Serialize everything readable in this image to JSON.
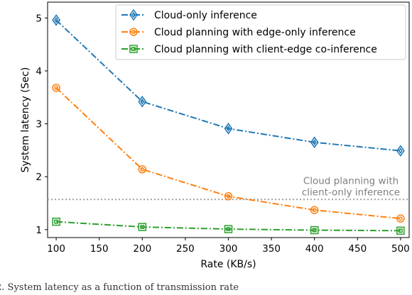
{
  "chart_data": {
    "type": "line",
    "xlabel": "Rate (KB/s)",
    "ylabel": "System latency (Sec)",
    "xlim": [
      90,
      510
    ],
    "ylim": [
      0.85,
      5.3
    ],
    "x_ticks": [
      "100",
      "150",
      "200",
      "250",
      "300",
      "350",
      "400",
      "450",
      "500"
    ],
    "y_ticks": [
      "1",
      "2",
      "3",
      "4",
      "5"
    ],
    "x": [
      100,
      200,
      300,
      400,
      500
    ],
    "series": [
      {
        "name": "Cloud-only inference",
        "color": "#1f77b4",
        "marker": "diamond",
        "values": [
          4.96,
          3.42,
          2.91,
          2.65,
          2.49
        ]
      },
      {
        "name": "Cloud planning with edge-only inference",
        "color": "#ff7f0e",
        "marker": "circle",
        "values": [
          3.68,
          2.14,
          1.63,
          1.37,
          1.21
        ]
      },
      {
        "name": "Cloud planning with client-edge co-inference",
        "color": "#2ca02c",
        "marker": "square",
        "values": [
          1.15,
          1.05,
          1.01,
          0.99,
          0.98
        ]
      }
    ],
    "reference_line": {
      "value": 1.57,
      "label_line1": "Cloud planning with",
      "label_line2": "client-only inference",
      "color": "#a0a0a0"
    },
    "legend_position": "top-right",
    "grid": false
  },
  "caption": "2.  System latency as a function of transmission rate"
}
